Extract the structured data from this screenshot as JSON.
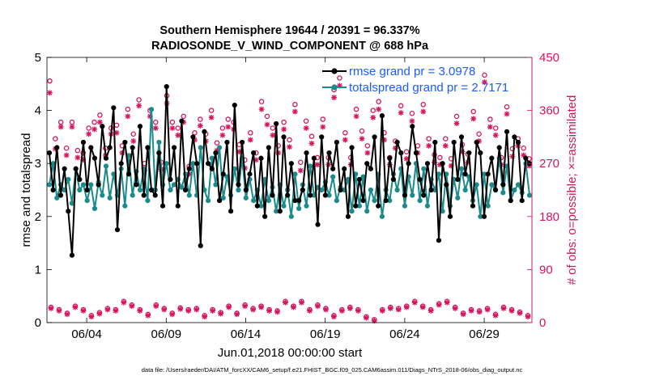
{
  "chart_data": {
    "type": "line",
    "title_line1": "Southern Hemisphere 19644 / 20391 = 96.337%",
    "title_line2": "RADIOSONDE_V_WIND_COMPONENT @ 688 hPa",
    "ylabel_left": "rmse and totalspread",
    "ylabel_right": "# of obs: o=possible; ×=assimilated",
    "xlabel": "Jun.01,2018 00:00:00 start",
    "footnote": "data file: /Users/raeder/DAI/ATM_forcXX/CAM6_setup/f.e21.FHIST_BGC.f09_025.CAM6assim.011/Diags_NTrS_2018-06/obs_diag_output.nc",
    "xlim": [
      1,
      31.5
    ],
    "ylim_left": [
      0,
      5
    ],
    "ylim_right": [
      0,
      450
    ],
    "x_ticks": [
      3.5,
      8.5,
      13.5,
      18.5,
      23.5,
      28.5
    ],
    "x_tick_labels": [
      "06/04",
      "06/09",
      "06/14",
      "06/19",
      "06/24",
      "06/29"
    ],
    "y_ticks_left": [
      "0",
      "1",
      "2",
      "3",
      "4",
      "5"
    ],
    "y_ticks_right": [
      "0",
      "90",
      "180",
      "270",
      "360",
      "450"
    ],
    "colors": {
      "rmse": "#000000",
      "spread": "#1a8a8a",
      "obs": "#d6145e",
      "legend_text": "#1a5cff"
    },
    "series": [
      {
        "name": "rmse",
        "legend": "rmse grand pr = 3.0978",
        "values": [
          3.2,
          2.5,
          3.3,
          2.4,
          2.9,
          2.1,
          1.27,
          2.9,
          2.7,
          3.4,
          2.5,
          3.3,
          3.1,
          2.6,
          3.7,
          3.1,
          3.3,
          4.05,
          1.75,
          3.0,
          3.4,
          2.8,
          3.3,
          2.6,
          3.7,
          2.4,
          3.3,
          2.5,
          2.4,
          3.2,
          2.2,
          4.45,
          2.7,
          3.3,
          2.2,
          3.8,
          2.5,
          2.9,
          3.5,
          3.0,
          1.45,
          3.6,
          3.0,
          2.9,
          3.2,
          2.3,
          2.8,
          3.4,
          2.1,
          4.1,
          2.6,
          3.4,
          2.5,
          2.8,
          3.2,
          2.2,
          3.1,
          2.0,
          3.3,
          2.4,
          3.75,
          2.1,
          3.5,
          2.4,
          3.0,
          2.3,
          2.3,
          2.5,
          3.2,
          2.4,
          3.1,
          1.85,
          3.5,
          2.4,
          3.2,
          2.9,
          3.4,
          2.5,
          2.9,
          2.0,
          3.3,
          2.2,
          2.7,
          2.3,
          3.0,
          2.9,
          3.5,
          2.2,
          3.9,
          2.3,
          3.1,
          2.7,
          3.4,
          3.2,
          2.4,
          3.0,
          3.7,
          3.2,
          2.7,
          2.4,
          3.0,
          2.5,
          3.4,
          1.55,
          3.0,
          2.6,
          2.0,
          3.4,
          2.7,
          3.5,
          2.8,
          3.2,
          2.2,
          3.4,
          3.2,
          2.0,
          2.8,
          3.1,
          2.5,
          3.3,
          2.6,
          3.6,
          2.3,
          3.5,
          3.4,
          2.3,
          3.1,
          3.0
        ]
      },
      {
        "name": "totalspread",
        "legend": "totalspread grand pr = 2.7171",
        "values": [
          2.6,
          3.0,
          2.35,
          2.6,
          2.5,
          2.7,
          2.25,
          2.9,
          2.5,
          2.6,
          2.3,
          2.6,
          2.15,
          2.65,
          2.4,
          2.95,
          2.35,
          2.8,
          2.4,
          2.9,
          2.2,
          3.15,
          2.4,
          2.85,
          2.5,
          2.9,
          2.3,
          4.02,
          2.5,
          3.4,
          2.6,
          3.0,
          2.5,
          2.6,
          2.7,
          2.55,
          2.8,
          2.4,
          3.0,
          2.4,
          3.3,
          2.5,
          2.3,
          3.1,
          2.6,
          3.3,
          2.35,
          2.75,
          2.4,
          2.9,
          2.5,
          3.1,
          2.35,
          2.7,
          2.3,
          2.5,
          2.2,
          2.7,
          2.3,
          2.55,
          2.1,
          2.6,
          2.2,
          2.5,
          2.0,
          2.8,
          2.15,
          2.6,
          2.2,
          2.95,
          2.4,
          2.55,
          2.5,
          2.65,
          2.4,
          2.75,
          2.3,
          2.55,
          2.5,
          2.7,
          2.1,
          2.8,
          2.2,
          2.75,
          2.1,
          2.5,
          2.3,
          2.8,
          2.0,
          2.5,
          2.3,
          2.8,
          2.5,
          2.9,
          2.2,
          2.75,
          2.4,
          3.0,
          2.3,
          2.9,
          2.2,
          2.7,
          2.5,
          2.8,
          2.1,
          2.8,
          2.2,
          2.7,
          2.35,
          2.9,
          2.5,
          2.75,
          2.3,
          2.6,
          2.0,
          2.8,
          2.2,
          2.6,
          2.5,
          3.1,
          2.45,
          2.95,
          2.3,
          2.5,
          2.6,
          2.45,
          3.0,
          2.4
        ]
      }
    ],
    "obs_possible": [
      26,
      22,
      16,
      28,
      22,
      12,
      17,
      24,
      22,
      36,
      30,
      22,
      14,
      30,
      24,
      16,
      25,
      22,
      24,
      12,
      22,
      17,
      28,
      16,
      30,
      24,
      28,
      22,
      20,
      36,
      28,
      36,
      22,
      30,
      24,
      12,
      22,
      26,
      22,
      10,
      5,
      22,
      26,
      24,
      28,
      36,
      28,
      22,
      32,
      36,
      26,
      16,
      22,
      20,
      24,
      14,
      26,
      22,
      18,
      12
    ],
    "obs_assimilated": [
      24,
      20,
      14,
      26,
      20,
      10,
      15,
      22,
      20,
      34,
      28,
      20,
      12,
      28,
      22,
      14,
      23,
      20,
      22,
      10,
      20,
      15,
      26,
      14,
      28,
      22,
      26,
      20,
      18,
      34,
      26,
      34,
      20,
      28,
      22,
      10,
      20,
      24,
      20,
      8,
      3,
      20,
      24,
      22,
      26,
      34,
      26,
      20,
      30,
      34,
      24,
      14,
      20,
      18,
      22,
      12,
      24,
      20,
      16,
      10
    ],
    "obs_possible_upper": [
      410,
      312,
      340,
      296,
      340,
      292,
      288,
      330,
      340,
      352,
      296,
      330,
      335,
      300,
      362,
      320,
      378,
      270,
      360,
      340,
      272,
      385,
      340,
      330,
      350,
      265,
      322,
      345,
      320,
      360,
      305,
      330,
      345,
      340,
      302,
      276,
      322,
      288,
      375,
      350,
      330,
      300,
      340,
      310,
      370,
      272,
      342,
      316,
      280,
      345,
      280,
      395,
      415,
      322,
      280,
      362,
      325,
      300,
      360,
      375,
      322,
      280,
      308,
      368,
      290,
      355,
      300,
      370,
      312,
      285,
      280,
      312,
      278,
      350,
      302,
      286,
      358,
      320,
      420,
      345,
      330,
      280,
      366,
      295,
      312,
      296,
      278
    ],
    "obs_assimilated_upper": [
      390,
      295,
      332,
      284,
      332,
      280,
      276,
      320,
      328,
      340,
      284,
      320,
      322,
      288,
      350,
      308,
      368,
      258,
      350,
      330,
      260,
      372,
      330,
      318,
      340,
      252,
      310,
      334,
      308,
      348,
      292,
      318,
      332,
      328,
      290,
      262,
      310,
      276,
      362,
      336,
      318,
      288,
      328,
      298,
      358,
      258,
      330,
      304,
      268,
      332,
      268,
      382,
      402,
      310,
      268,
      350,
      312,
      288,
      348,
      362,
      310,
      268,
      296,
      356,
      278,
      342,
      288,
      358,
      300,
      272,
      268,
      300,
      266,
      338,
      290,
      272,
      346,
      308,
      408,
      332,
      318,
      268,
      354,
      282,
      300,
      284,
      266
    ]
  }
}
